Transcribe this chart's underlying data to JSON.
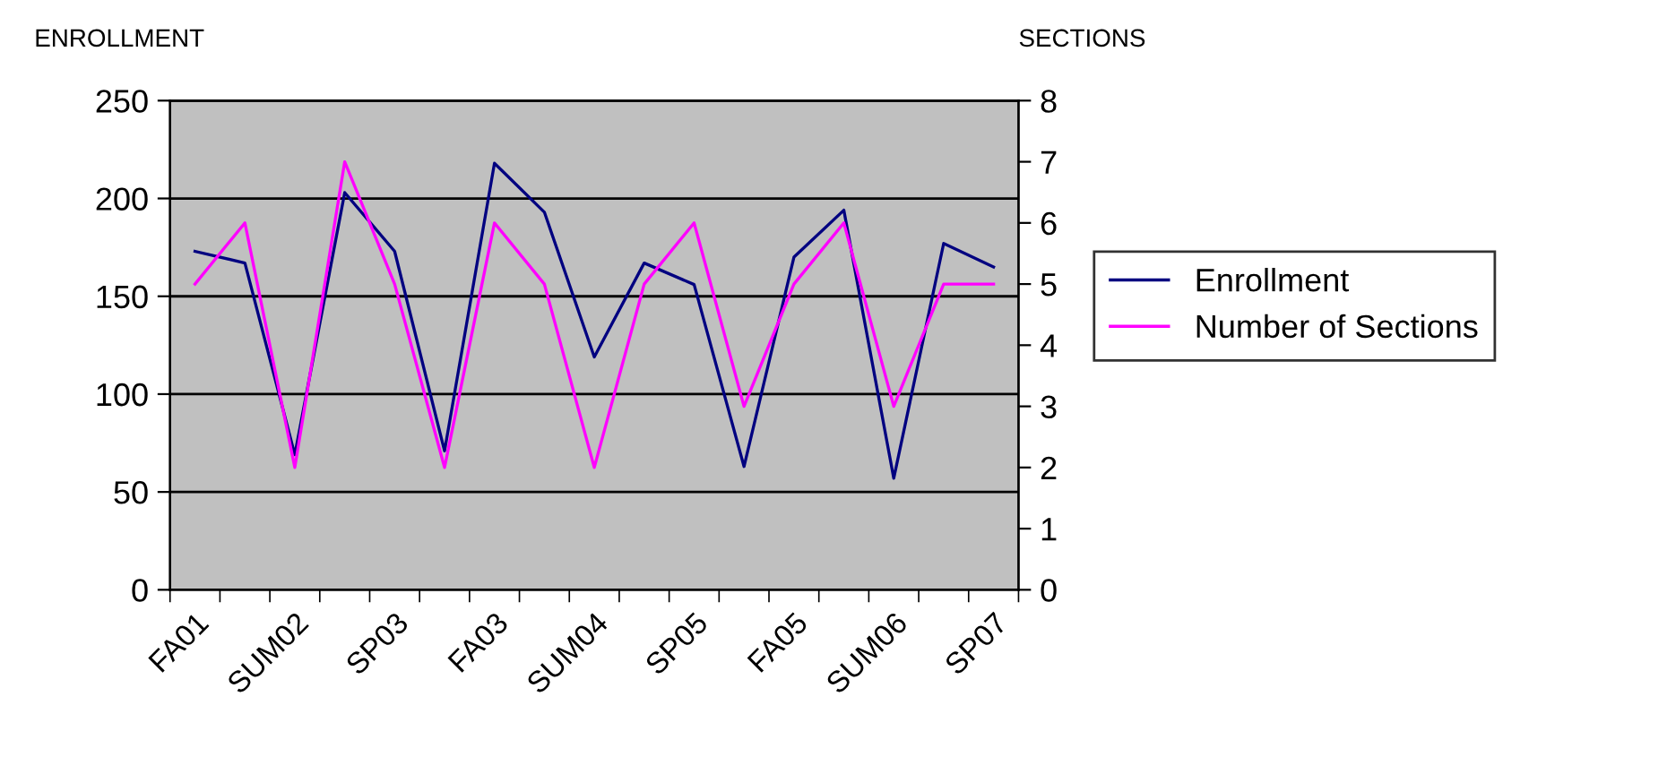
{
  "chart_data": {
    "type": "line",
    "categories": [
      "FA01",
      null,
      "SUM02",
      null,
      "SP03",
      null,
      "FA03",
      null,
      "SUM04",
      null,
      "SP05",
      null,
      "FA05",
      null,
      "SUM06",
      null,
      "SP07"
    ],
    "series": [
      {
        "name": "Enrollment",
        "color": "#000080",
        "values": [
          173,
          167,
          69,
          203,
          173,
          71,
          218,
          193,
          119,
          167,
          156,
          63,
          170,
          194,
          57,
          177,
          165
        ]
      },
      {
        "name": "Number of Sections",
        "color": "#ff00ff",
        "axis": "y2",
        "values": [
          5,
          6,
          2,
          7,
          5,
          2,
          6,
          5,
          2,
          5,
          6,
          3,
          5,
          6,
          3,
          5,
          5
        ]
      }
    ],
    "ylabel": "ENROLLMENT",
    "y2label": "SECTIONS",
    "ylim": [
      0,
      250
    ],
    "yticks": [
      0,
      50,
      100,
      150,
      200,
      250
    ],
    "y2lim": [
      0,
      8
    ],
    "y2ticks": [
      0,
      1,
      2,
      3,
      4,
      5,
      6,
      7,
      8
    ],
    "grid": "y",
    "legend": "right",
    "marker": "none",
    "line_style": "solid"
  }
}
